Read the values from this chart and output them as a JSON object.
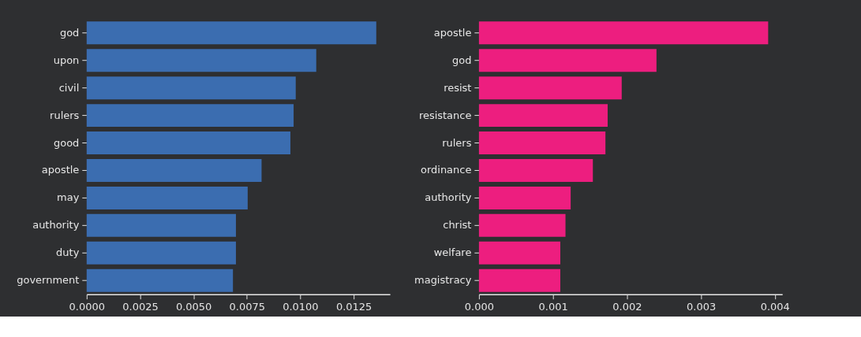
{
  "chart_data": [
    {
      "type": "bar",
      "orientation": "horizontal",
      "categories": [
        "god",
        "upon",
        "civil",
        "rulers",
        "good",
        "apostle",
        "may",
        "authority",
        "duty",
        "government"
      ],
      "values": [
        0.01356,
        0.01075,
        0.00979,
        0.00969,
        0.00954,
        0.00819,
        0.00754,
        0.00699,
        0.00699,
        0.00685
      ],
      "color": "#3b6db0",
      "xlim": [
        0,
        0.0142
      ],
      "xticks": [
        {
          "value": 0,
          "label": "0.0000"
        },
        {
          "value": 0.0025,
          "label": "0.0025"
        },
        {
          "value": 0.005,
          "label": "0.0050"
        },
        {
          "value": 0.0075,
          "label": "0.0075"
        },
        {
          "value": 0.01,
          "label": "0.0100"
        },
        {
          "value": 0.0125,
          "label": "0.0125"
        }
      ],
      "grid": false
    },
    {
      "type": "bar",
      "orientation": "horizontal",
      "categories": [
        "apostle",
        "god",
        "resist",
        "resistance",
        "rulers",
        "ordinance",
        "authority",
        "christ",
        "welfare",
        "magistracy"
      ],
      "values": [
        0.00391,
        0.0024,
        0.00193,
        0.00174,
        0.00171,
        0.00154,
        0.00124,
        0.00117,
        0.0011,
        0.0011
      ],
      "color": "#ed1e7f",
      "xlim": [
        0,
        0.0041
      ],
      "xticks": [
        {
          "value": 0,
          "label": "0.000"
        },
        {
          "value": 0.001,
          "label": "0.001"
        },
        {
          "value": 0.002,
          "label": "0.002"
        },
        {
          "value": 0.003,
          "label": "0.003"
        },
        {
          "value": 0.004,
          "label": "0.004"
        }
      ],
      "grid": false
    }
  ]
}
